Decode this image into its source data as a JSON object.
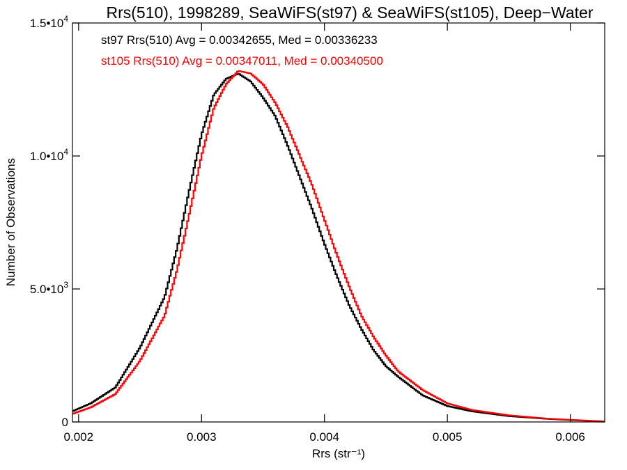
{
  "chart_data": {
    "type": "line",
    "title": "Rrs(510), 1998289, SeaWiFS(st97) & SeaWiFS(st105), Deep−Water",
    "xlabel": "Rrs (str⁻¹)",
    "ylabel": "Number of Observations",
    "xlim": [
      0.00195,
      0.00628
    ],
    "ylim": [
      0,
      15000
    ],
    "grid": false,
    "step": true,
    "x_ticks": [
      {
        "value": 0.002,
        "label": "0.002"
      },
      {
        "value": 0.003,
        "label": "0.003"
      },
      {
        "value": 0.004,
        "label": "0.004"
      },
      {
        "value": 0.005,
        "label": "0.005"
      },
      {
        "value": 0.006,
        "label": "0.006"
      }
    ],
    "y_ticks": [
      {
        "value": 0,
        "label": "0",
        "sup": ""
      },
      {
        "value": 5000,
        "label": "5.0•10",
        "sup": "3"
      },
      {
        "value": 10000,
        "label": "1.0•10",
        "sup": "4"
      },
      {
        "value": 15000,
        "label": "1.5•10",
        "sup": "4"
      }
    ],
    "series": [
      {
        "name": "st97",
        "color": "#000000",
        "annotation": "st97 Rrs(510) Avg = 0.00342655, Med = 0.00336233",
        "x": [
          0.00195,
          0.0021,
          0.0023,
          0.0025,
          0.0027,
          0.0028,
          0.0029,
          0.003,
          0.0031,
          0.0032,
          0.0033,
          0.0034,
          0.0035,
          0.0036,
          0.0037,
          0.0038,
          0.0039,
          0.004,
          0.0041,
          0.0042,
          0.0043,
          0.0044,
          0.0045,
          0.0046,
          0.0048,
          0.005,
          0.0052,
          0.0055,
          0.0058,
          0.006,
          0.00628
        ],
        "y": [
          400,
          700,
          1300,
          2800,
          4700,
          6500,
          8700,
          10800,
          12300,
          12900,
          13100,
          12800,
          12200,
          11500,
          10400,
          9200,
          8000,
          6700,
          5500,
          4400,
          3500,
          2700,
          2100,
          1700,
          1000,
          600,
          400,
          220,
          120,
          70,
          20
        ]
      },
      {
        "name": "st105",
        "color": "#ff0000",
        "annotation": "st105 Rrs(510) Avg = 0.00347011, Med = 0.00340500",
        "x": [
          0.00195,
          0.0021,
          0.0023,
          0.0025,
          0.0027,
          0.0028,
          0.0029,
          0.003,
          0.0031,
          0.0032,
          0.0033,
          0.0034,
          0.0035,
          0.0036,
          0.0037,
          0.0038,
          0.0039,
          0.004,
          0.0041,
          0.0042,
          0.0043,
          0.0044,
          0.0045,
          0.0046,
          0.0048,
          0.005,
          0.0052,
          0.0055,
          0.0058,
          0.006,
          0.00628
        ],
        "y": [
          300,
          550,
          1050,
          2300,
          4000,
          5700,
          7800,
          10000,
          11800,
          12700,
          13200,
          13100,
          12700,
          12000,
          11100,
          10000,
          8900,
          7600,
          6300,
          5100,
          4000,
          3200,
          2500,
          1900,
          1200,
          700,
          450,
          250,
          130,
          80,
          20
        ]
      }
    ]
  }
}
